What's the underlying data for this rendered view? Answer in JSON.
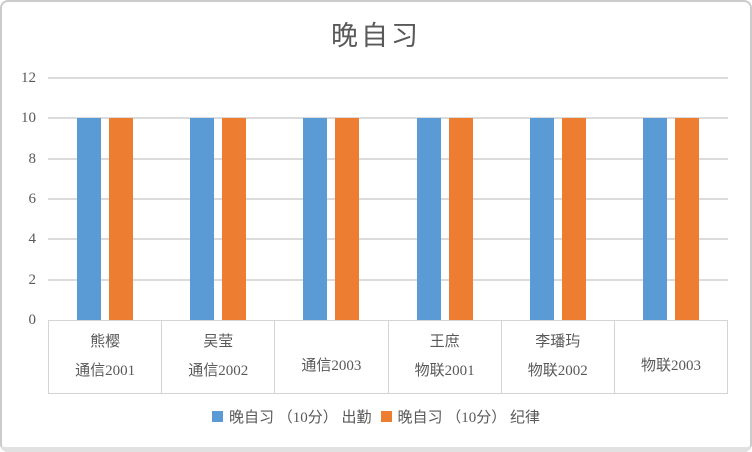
{
  "chart_data": {
    "type": "bar",
    "title": "晚自习",
    "categories": [
      {
        "name": "熊樱",
        "group": "通信2001"
      },
      {
        "name": "吴莹",
        "group": "通信2002"
      },
      {
        "name": "",
        "group": "通信2003"
      },
      {
        "name": "王庶",
        "group": "物联2001"
      },
      {
        "name": "李璠玙",
        "group": "物联2002"
      },
      {
        "name": "",
        "group": "物联2003"
      }
    ],
    "series": [
      {
        "name": "晚自习 （10分） 出勤",
        "color": "#5b9bd5",
        "values": [
          10,
          10,
          10,
          10,
          10,
          10
        ]
      },
      {
        "name": "晚自习 （10分） 纪律",
        "color": "#ed7d31",
        "values": [
          10,
          10,
          10,
          10,
          10,
          10
        ]
      }
    ],
    "ylim": [
      0,
      12
    ],
    "yticks": [
      0,
      2,
      4,
      6,
      8,
      10,
      12
    ],
    "grid": true,
    "legend_position": "bottom",
    "text_color": "#595959"
  }
}
